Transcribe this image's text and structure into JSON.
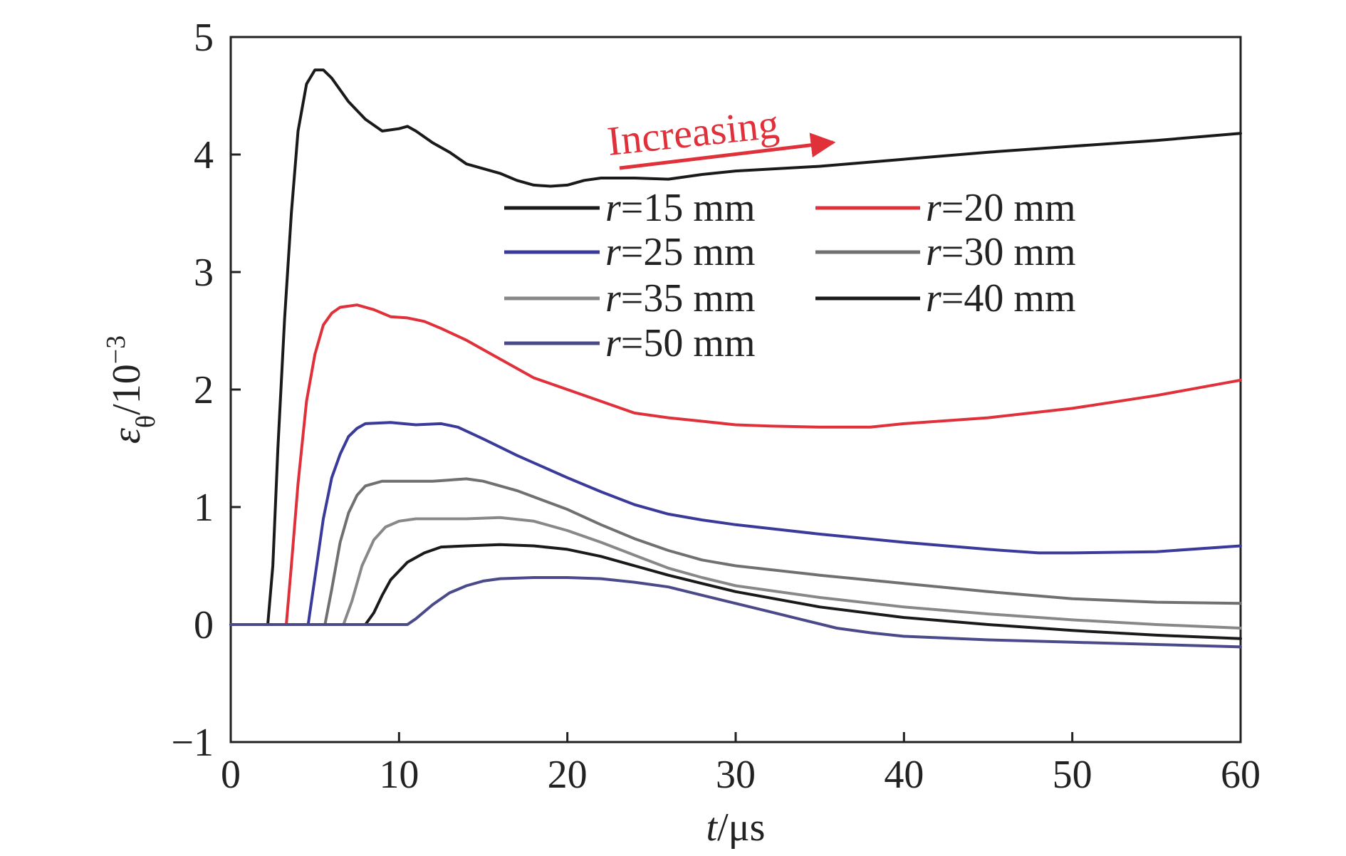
{
  "chart_data": {
    "type": "line",
    "xlabel": {
      "var": "t",
      "unit": "/μs"
    },
    "ylabel": {
      "var": "ε",
      "sub": "θ",
      "unit": "/10",
      "exp": "−3"
    },
    "xlim": [
      0,
      60
    ],
    "ylim": [
      -1,
      5
    ],
    "xticks": [
      0,
      10,
      20,
      30,
      40,
      50,
      60
    ],
    "yticks": [
      -1,
      0,
      1,
      2,
      3,
      4,
      5
    ],
    "xtick_labels": [
      "0",
      "10",
      "20",
      "30",
      "40",
      "50",
      "60"
    ],
    "ytick_labels": [
      "−1",
      "0",
      "1",
      "2",
      "3",
      "4",
      "5"
    ],
    "grid": false,
    "legend_position": "upper-center",
    "annotation": {
      "text": "Increasing",
      "color": "#e0303a"
    },
    "series": [
      {
        "name": "r=15 mm",
        "var": "r",
        "value": "=15 mm",
        "color": "#1a1a1a",
        "points": [
          [
            0,
            0
          ],
          [
            2.2,
            0
          ],
          [
            2.5,
            0.5
          ],
          [
            2.8,
            1.5
          ],
          [
            3.2,
            2.6
          ],
          [
            3.6,
            3.5
          ],
          [
            4,
            4.2
          ],
          [
            4.5,
            4.6
          ],
          [
            5,
            4.72
          ],
          [
            5.5,
            4.72
          ],
          [
            6,
            4.65
          ],
          [
            7,
            4.45
          ],
          [
            8,
            4.3
          ],
          [
            9,
            4.2
          ],
          [
            10,
            4.22
          ],
          [
            10.5,
            4.24
          ],
          [
            11,
            4.2
          ],
          [
            12,
            4.1
          ],
          [
            13,
            4.02
          ],
          [
            14,
            3.92
          ],
          [
            15,
            3.88
          ],
          [
            16,
            3.84
          ],
          [
            17,
            3.78
          ],
          [
            18,
            3.74
          ],
          [
            19,
            3.73
          ],
          [
            20,
            3.74
          ],
          [
            21,
            3.78
          ],
          [
            22,
            3.8
          ],
          [
            24,
            3.8
          ],
          [
            26,
            3.79
          ],
          [
            28,
            3.83
          ],
          [
            30,
            3.86
          ],
          [
            35,
            3.9
          ],
          [
            40,
            3.96
          ],
          [
            45,
            4.02
          ],
          [
            50,
            4.07
          ],
          [
            55,
            4.12
          ],
          [
            60,
            4.18
          ]
        ]
      },
      {
        "name": "r=20 mm",
        "var": "r",
        "value": "=20 mm",
        "color": "#e0303a",
        "points": [
          [
            0,
            0
          ],
          [
            3.3,
            0
          ],
          [
            3.6,
            0.5
          ],
          [
            4,
            1.2
          ],
          [
            4.5,
            1.9
          ],
          [
            5,
            2.3
          ],
          [
            5.5,
            2.55
          ],
          [
            6,
            2.65
          ],
          [
            6.5,
            2.7
          ],
          [
            7.5,
            2.72
          ],
          [
            8.5,
            2.68
          ],
          [
            9.5,
            2.62
          ],
          [
            10.5,
            2.61
          ],
          [
            11.5,
            2.58
          ],
          [
            12.5,
            2.52
          ],
          [
            14,
            2.42
          ],
          [
            16,
            2.26
          ],
          [
            18,
            2.1
          ],
          [
            20,
            2.0
          ],
          [
            22,
            1.9
          ],
          [
            24,
            1.8
          ],
          [
            26,
            1.76
          ],
          [
            28,
            1.73
          ],
          [
            30,
            1.7
          ],
          [
            32,
            1.69
          ],
          [
            35,
            1.68
          ],
          [
            38,
            1.68
          ],
          [
            40,
            1.71
          ],
          [
            45,
            1.76
          ],
          [
            50,
            1.84
          ],
          [
            55,
            1.95
          ],
          [
            60,
            2.08
          ]
        ]
      },
      {
        "name": "r=25 mm",
        "var": "r",
        "value": "=25 mm",
        "color": "#3a3a9a",
        "points": [
          [
            0,
            0
          ],
          [
            4.6,
            0
          ],
          [
            5,
            0.4
          ],
          [
            5.5,
            0.9
          ],
          [
            6,
            1.25
          ],
          [
            6.5,
            1.45
          ],
          [
            7,
            1.6
          ],
          [
            7.5,
            1.67
          ],
          [
            8,
            1.71
          ],
          [
            9.5,
            1.72
          ],
          [
            11,
            1.7
          ],
          [
            12.5,
            1.71
          ],
          [
            13.5,
            1.68
          ],
          [
            15,
            1.58
          ],
          [
            17,
            1.44
          ],
          [
            20,
            1.25
          ],
          [
            22,
            1.13
          ],
          [
            24,
            1.02
          ],
          [
            26,
            0.94
          ],
          [
            28,
            0.89
          ],
          [
            30,
            0.85
          ],
          [
            35,
            0.77
          ],
          [
            40,
            0.7
          ],
          [
            45,
            0.64
          ],
          [
            48,
            0.61
          ],
          [
            50,
            0.61
          ],
          [
            55,
            0.62
          ],
          [
            60,
            0.67
          ]
        ]
      },
      {
        "name": "r=30 mm",
        "var": "r",
        "value": "=30 mm",
        "color": "#707070",
        "points": [
          [
            0,
            0
          ],
          [
            5.6,
            0
          ],
          [
            6,
            0.3
          ],
          [
            6.5,
            0.7
          ],
          [
            7,
            0.95
          ],
          [
            7.5,
            1.1
          ],
          [
            8,
            1.18
          ],
          [
            9,
            1.22
          ],
          [
            11,
            1.22
          ],
          [
            12,
            1.22
          ],
          [
            14,
            1.24
          ],
          [
            15,
            1.22
          ],
          [
            17,
            1.14
          ],
          [
            20,
            0.98
          ],
          [
            22,
            0.85
          ],
          [
            24,
            0.73
          ],
          [
            26,
            0.63
          ],
          [
            28,
            0.55
          ],
          [
            30,
            0.5
          ],
          [
            35,
            0.42
          ],
          [
            40,
            0.35
          ],
          [
            45,
            0.28
          ],
          [
            50,
            0.22
          ],
          [
            55,
            0.19
          ],
          [
            60,
            0.18
          ]
        ]
      },
      {
        "name": "r=35 mm",
        "var": "r",
        "value": "=35 mm",
        "color": "#888888",
        "points": [
          [
            0,
            0
          ],
          [
            6.7,
            0
          ],
          [
            7.2,
            0.2
          ],
          [
            7.8,
            0.5
          ],
          [
            8.5,
            0.72
          ],
          [
            9.2,
            0.83
          ],
          [
            10,
            0.88
          ],
          [
            11,
            0.9
          ],
          [
            12,
            0.9
          ],
          [
            14,
            0.9
          ],
          [
            16,
            0.91
          ],
          [
            18,
            0.88
          ],
          [
            20,
            0.8
          ],
          [
            22,
            0.7
          ],
          [
            24,
            0.59
          ],
          [
            26,
            0.48
          ],
          [
            28,
            0.4
          ],
          [
            30,
            0.33
          ],
          [
            35,
            0.23
          ],
          [
            40,
            0.15
          ],
          [
            45,
            0.09
          ],
          [
            50,
            0.04
          ],
          [
            55,
            0.0
          ],
          [
            60,
            -0.03
          ]
        ]
      },
      {
        "name": "r=40 mm",
        "var": "r",
        "value": "=40 mm",
        "color": "#1a1a1a",
        "points": [
          [
            0,
            0
          ],
          [
            8,
            0
          ],
          [
            8.5,
            0.1
          ],
          [
            9,
            0.25
          ],
          [
            9.5,
            0.38
          ],
          [
            10.5,
            0.53
          ],
          [
            11.5,
            0.61
          ],
          [
            12.5,
            0.66
          ],
          [
            14,
            0.67
          ],
          [
            16,
            0.68
          ],
          [
            18,
            0.67
          ],
          [
            20,
            0.64
          ],
          [
            22,
            0.58
          ],
          [
            24,
            0.5
          ],
          [
            26,
            0.42
          ],
          [
            28,
            0.35
          ],
          [
            30,
            0.28
          ],
          [
            35,
            0.15
          ],
          [
            40,
            0.06
          ],
          [
            45,
            0.0
          ],
          [
            50,
            -0.05
          ],
          [
            55,
            -0.09
          ],
          [
            60,
            -0.12
          ]
        ]
      },
      {
        "name": "r=50 mm",
        "var": "r",
        "value": "=50 mm",
        "color": "#4a4a8a",
        "points": [
          [
            0,
            0
          ],
          [
            10.5,
            0
          ],
          [
            11,
            0.05
          ],
          [
            12,
            0.17
          ],
          [
            13,
            0.27
          ],
          [
            14,
            0.33
          ],
          [
            15,
            0.37
          ],
          [
            16,
            0.39
          ],
          [
            18,
            0.4
          ],
          [
            20,
            0.4
          ],
          [
            22,
            0.39
          ],
          [
            24,
            0.36
          ],
          [
            26,
            0.32
          ],
          [
            28,
            0.25
          ],
          [
            30,
            0.18
          ],
          [
            32,
            0.11
          ],
          [
            34,
            0.04
          ],
          [
            36,
            -0.03
          ],
          [
            38,
            -0.07
          ],
          [
            40,
            -0.1
          ],
          [
            45,
            -0.13
          ],
          [
            50,
            -0.15
          ],
          [
            55,
            -0.17
          ],
          [
            60,
            -0.19
          ]
        ]
      }
    ]
  }
}
